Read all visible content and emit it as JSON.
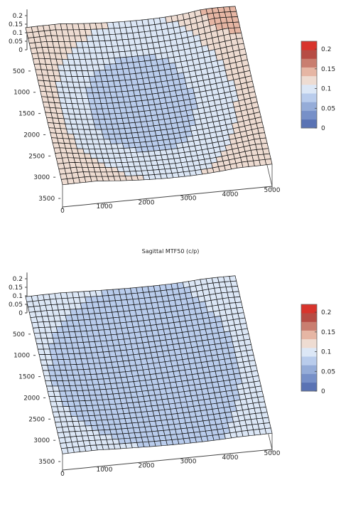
{
  "colors": {
    "ramp": [
      "#5a73b4",
      "#7790c8",
      "#95acd8",
      "#b9ccec",
      "#dce7f6",
      "#eedcd2",
      "#e6b6a4",
      "#c97e70",
      "#b64c44",
      "#d8342c"
    ],
    "grid_line": "#111111",
    "axis_line": "#444444"
  },
  "middle_title": "Sagittal MTF50 (c/p)",
  "chart_data": [
    {
      "type": "surface",
      "title": "",
      "x_ticks": [
        "0",
        "1000",
        "2000",
        "3000",
        "4000",
        "5000"
      ],
      "y_ticks": [
        "500",
        "1000",
        "1500",
        "2000",
        "2500",
        "3000",
        "3500"
      ],
      "z_ticks": [
        "0",
        "0.05",
        "0.1",
        "0.15",
        "0.2"
      ],
      "colorbar_ticks": [
        "0",
        "0.05",
        "0.1",
        "0.15",
        "0.2"
      ],
      "xlim": [
        0,
        5000
      ],
      "ylim": [
        0,
        3700
      ],
      "zlim": [
        0,
        0.22
      ],
      "colorbar_range": [
        0,
        0.22
      ],
      "grid_shape": [
        36,
        30
      ],
      "center_value": 0.075,
      "edge_value": 0.13,
      "corner_peak_value": 0.14
    },
    {
      "type": "surface",
      "title": "",
      "x_ticks": [
        "0",
        "1000",
        "2000",
        "3000",
        "4000",
        "5000"
      ],
      "y_ticks": [
        "500",
        "1000",
        "1500",
        "2000",
        "2500",
        "3000",
        "3500"
      ],
      "z_ticks": [
        "0",
        "0.05",
        "0.1",
        "0.15",
        "0.2"
      ],
      "colorbar_ticks": [
        "0",
        "0.05",
        "0.1",
        "0.15",
        "0.2"
      ],
      "xlim": [
        0,
        5000
      ],
      "ylim": [
        0,
        3700
      ],
      "zlim": [
        0,
        0.22
      ],
      "colorbar_range": [
        0,
        0.22
      ],
      "grid_shape": [
        36,
        30
      ],
      "center_value": 0.07,
      "edge_value": 0.095,
      "corner_peak_value": 0.1
    }
  ]
}
